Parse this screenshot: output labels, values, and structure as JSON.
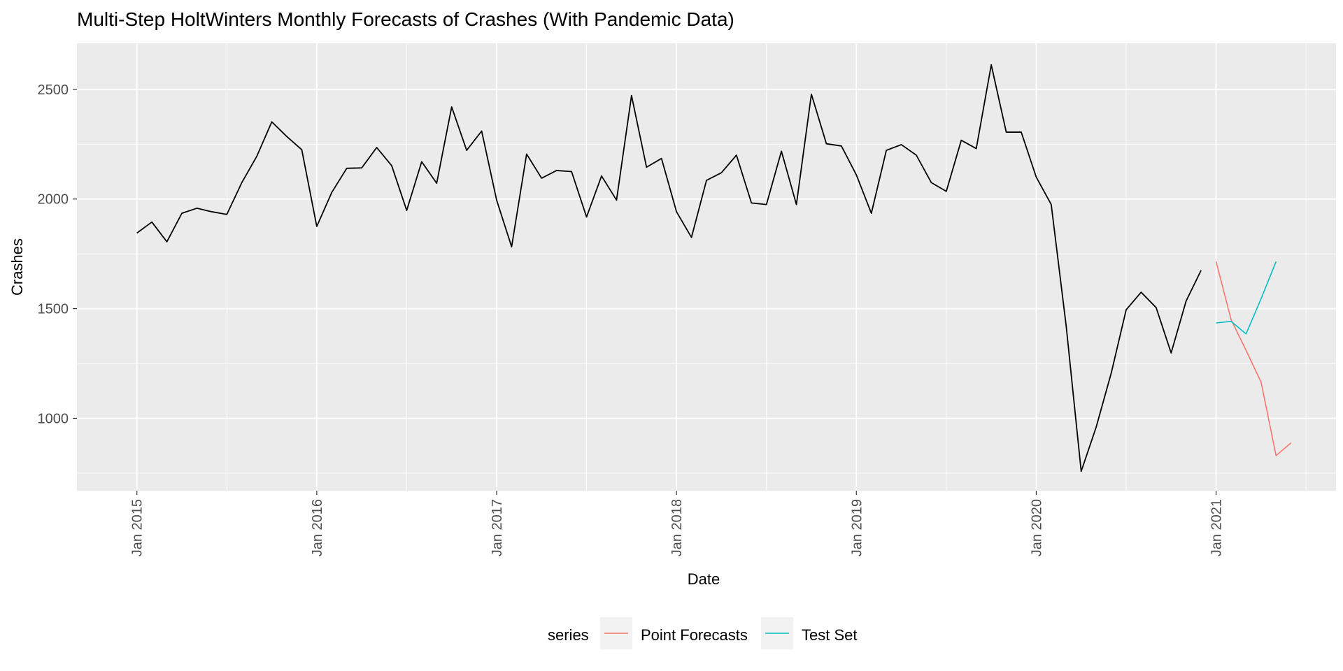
{
  "chart_data": {
    "type": "line",
    "title": "Multi-Step HoltWinters Monthly Forecasts of Crashes (With Pandemic Data)",
    "xlabel": "Date",
    "ylabel": "Crashes",
    "xlim": [
      "2014-09",
      "2021-09"
    ],
    "ylim": [
      670,
      2710
    ],
    "x_ticks": [
      "Jan 2015",
      "Jan 2016",
      "Jan 2017",
      "Jan 2018",
      "Jan 2019",
      "Jan 2020",
      "Jan 2021"
    ],
    "y_ticks": [
      1000,
      1500,
      2000,
      2500
    ],
    "grid": true,
    "legend": {
      "title": "series",
      "position": "bottom",
      "entries": [
        "Point Forecasts",
        "Test Set"
      ]
    },
    "colors": {
      "history": "#000000",
      "Point Forecasts": "#f8766d",
      "Test Set": "#00bfc4",
      "panel": "#ebebeb",
      "grid": "#ffffff"
    },
    "series": [
      {
        "start": "2015-01",
        "values": [
          1845,
          1895,
          1805,
          1935,
          1958,
          1942,
          1930,
          2075,
          2195,
          2352,
          2285,
          2225,
          1875,
          2030,
          2140,
          2142,
          2235,
          2152,
          1948,
          2170,
          2072,
          2420,
          2222,
          2310,
          1995,
          1782,
          2205,
          2095,
          2130,
          2125,
          1918,
          2105,
          1995,
          2472,
          2145,
          2185,
          1942,
          1825,
          2085,
          2120,
          2200,
          1982,
          1975,
          2218,
          1975,
          2478,
          2252,
          2242,
          2110,
          1935,
          2222,
          2248,
          2200,
          2075,
          2035,
          2268,
          2230,
          2612,
          2305,
          2305,
          2100,
          1975,
          1420,
          758,
          960,
          1205,
          1495,
          1575,
          1505,
          1298,
          1535,
          1675
        ]
      },
      {
        "name": "Point Forecasts",
        "start": "2021-01",
        "values": [
          1715,
          1450,
          1310,
          1165,
          830,
          888
        ]
      },
      {
        "name": "Test Set",
        "start": "2021-01",
        "values": [
          1435,
          1442,
          1385,
          1545,
          1715
        ]
      }
    ]
  }
}
